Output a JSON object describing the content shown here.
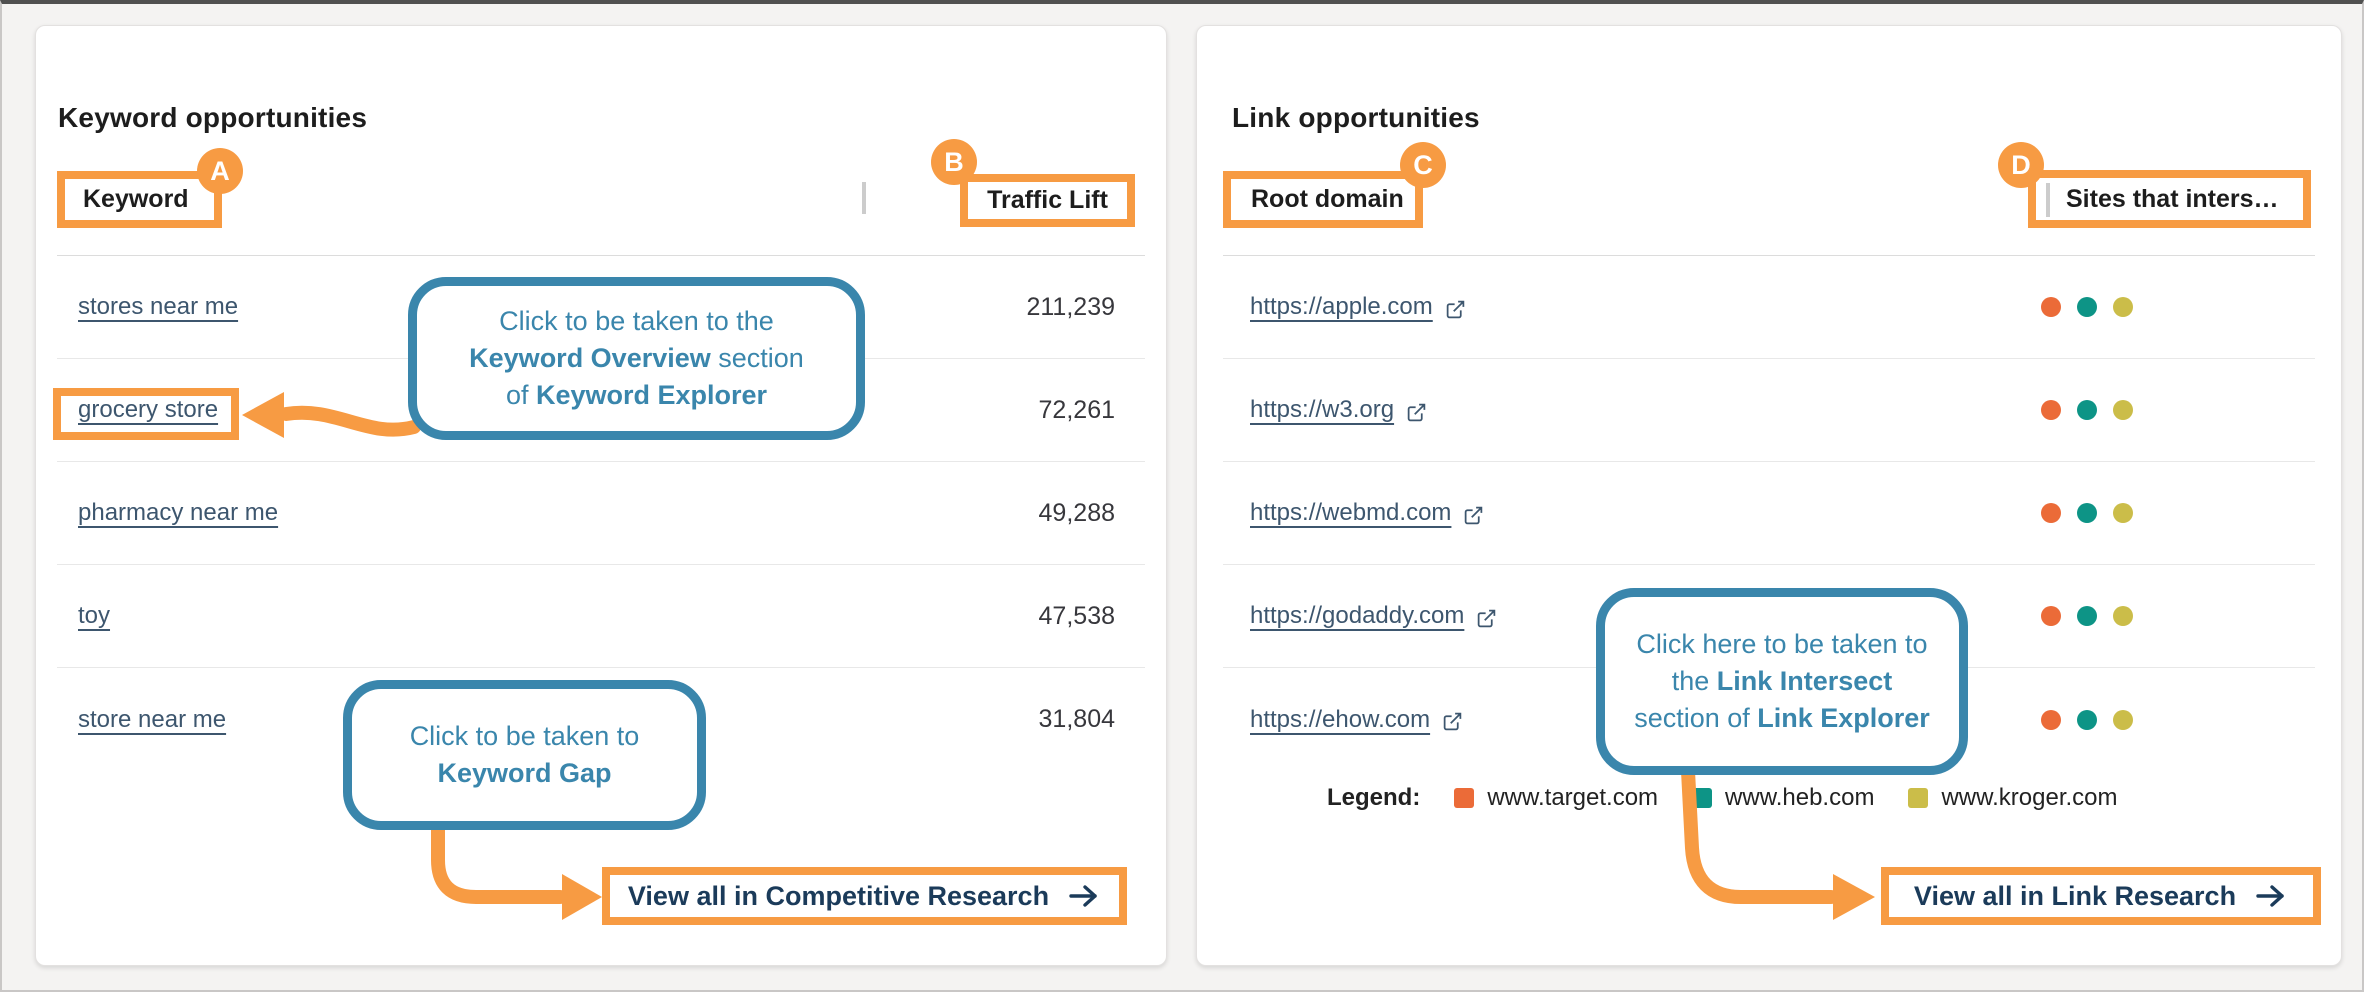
{
  "colors": {
    "annotation_orange": "#F79B43",
    "callout_blue": "#3A86AC",
    "link_slate": "#3D566E",
    "button_navy": "#1B3B5A",
    "dot_orange": "#EB6B38",
    "dot_teal": "#0D9486",
    "dot_olive": "#CBBD49",
    "page_background": "#f4f3f2"
  },
  "keyword_panel": {
    "title": "Keyword opportunities",
    "columns": [
      {
        "label": "Keyword",
        "badge": "A"
      },
      {
        "label": "Traffic Lift",
        "badge": "B"
      }
    ],
    "rows": [
      {
        "keyword": "stores near me",
        "traffic_lift": "211,239"
      },
      {
        "keyword": "grocery store",
        "traffic_lift": "72,261"
      },
      {
        "keyword": "pharmacy near me",
        "traffic_lift": "49,288"
      },
      {
        "keyword": "toy",
        "traffic_lift": "47,538"
      },
      {
        "keyword": "store near me",
        "traffic_lift": "31,804"
      }
    ],
    "callout_overview": {
      "lines": [
        [
          {
            "t": "Click to be taken to the"
          }
        ],
        [
          {
            "t": "Keyword Overview",
            "b": true
          },
          {
            "t": " section"
          }
        ],
        [
          {
            "t": "of "
          },
          {
            "t": "Keyword Explorer",
            "b": true
          }
        ]
      ]
    },
    "callout_gap": {
      "lines": [
        [
          {
            "t": "Click to be taken to"
          }
        ],
        [
          {
            "t": "Keyword Gap",
            "b": true
          }
        ]
      ]
    },
    "view_all": {
      "label": "View all in Competitive Research"
    }
  },
  "link_panel": {
    "title": "Link opportunities",
    "columns": [
      {
        "label": "Root domain",
        "badge": "C"
      },
      {
        "label": "Sites that inters…",
        "badge": "D"
      }
    ],
    "rows": [
      {
        "domain": "https://apple.com",
        "intersects": [
          "www.target.com",
          "www.heb.com",
          "www.kroger.com"
        ]
      },
      {
        "domain": "https://w3.org",
        "intersects": [
          "www.target.com",
          "www.heb.com",
          "www.kroger.com"
        ]
      },
      {
        "domain": "https://webmd.com",
        "intersects": [
          "www.target.com",
          "www.heb.com",
          "www.kroger.com"
        ]
      },
      {
        "domain": "https://godaddy.com",
        "intersects": [
          "www.target.com",
          "www.heb.com",
          "www.kroger.com"
        ]
      },
      {
        "domain": "https://ehow.com",
        "intersects": [
          "www.target.com",
          "www.heb.com",
          "www.kroger.com"
        ]
      }
    ],
    "legend": {
      "label": "Legend:",
      "items": [
        {
          "label": "www.target.com",
          "color": "#EB6B38"
        },
        {
          "label": "www.heb.com",
          "color": "#0D9486"
        },
        {
          "label": "www.kroger.com",
          "color": "#CBBD49"
        }
      ]
    },
    "callout_intersect": {
      "lines": [
        [
          {
            "t": "Click here to be taken to"
          }
        ],
        [
          {
            "t": "the "
          },
          {
            "t": "Link Intersect",
            "b": true
          }
        ],
        [
          {
            "t": "section of "
          },
          {
            "t": "Link Explorer",
            "b": true
          }
        ]
      ]
    },
    "view_all": {
      "label": "View all in Link Research"
    }
  }
}
